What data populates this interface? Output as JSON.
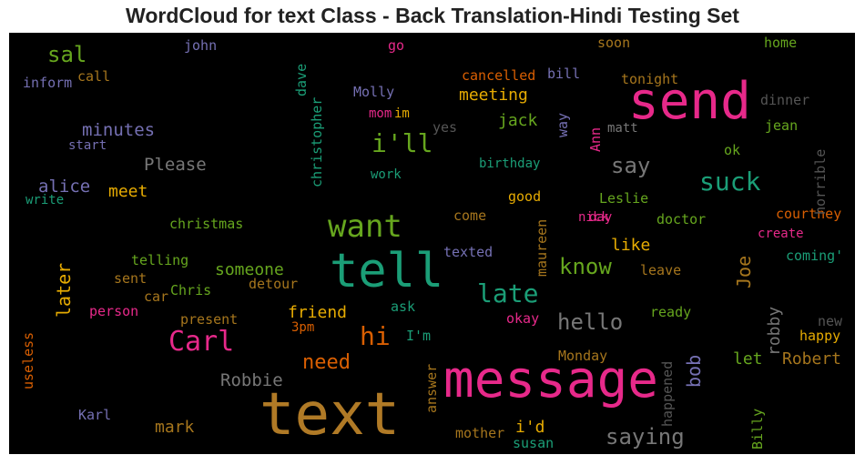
{
  "title": "WordCloud for text Class - Back Translation-Hindi Testing Set",
  "words": [
    {
      "id": "text",
      "text": "text",
      "color": "#b07a26"
    },
    {
      "id": "message",
      "text": "message",
      "color": "#e7298a"
    },
    {
      "id": "send",
      "text": "send",
      "color": "#e7298a"
    },
    {
      "id": "tell",
      "text": "tell",
      "color": "#1b9e77"
    },
    {
      "id": "want",
      "text": "want",
      "color": "#66a61e"
    },
    {
      "id": "carl",
      "text": "Carl",
      "color": "#e7298a"
    },
    {
      "id": "suck",
      "text": "suck",
      "color": "#1b9e77"
    },
    {
      "id": "ill",
      "text": "i'll",
      "color": "#66a61e"
    },
    {
      "id": "late",
      "text": "late",
      "color": "#1b9e77"
    },
    {
      "id": "hello",
      "text": "hello",
      "color": "#777777"
    },
    {
      "id": "saying",
      "text": "saying",
      "color": "#777777"
    },
    {
      "id": "hi",
      "text": "hi",
      "color": "#d95f02"
    },
    {
      "id": "know",
      "text": "know",
      "color": "#66a61e"
    },
    {
      "id": "say",
      "text": "say",
      "color": "#777777"
    },
    {
      "id": "need",
      "text": "need",
      "color": "#d95f02"
    },
    {
      "id": "sal",
      "text": "sal",
      "color": "#66a61e"
    },
    {
      "id": "minutes",
      "text": "minutes",
      "color": "#7570b3"
    },
    {
      "id": "please",
      "text": "Please",
      "color": "#777777"
    },
    {
      "id": "alice",
      "text": "alice",
      "color": "#7570b3"
    },
    {
      "id": "meet",
      "text": "meet",
      "color": "#e6ab02"
    },
    {
      "id": "meeting",
      "text": "meeting",
      "color": "#e6ab02"
    },
    {
      "id": "jack",
      "text": "jack",
      "color": "#66a61e"
    },
    {
      "id": "friend",
      "text": "friend",
      "color": "#e6ab02"
    },
    {
      "id": "someone",
      "text": "someone",
      "color": "#66a61e"
    },
    {
      "id": "robbie",
      "text": "Robbie",
      "color": "#777777"
    },
    {
      "id": "mark",
      "text": "mark",
      "color": "#a6761d"
    },
    {
      "id": "id",
      "text": "i'd",
      "color": "#e6ab02"
    },
    {
      "id": "like",
      "text": "like",
      "color": "#e6ab02"
    },
    {
      "id": "robert",
      "text": "Robert",
      "color": "#a6761d"
    },
    {
      "id": "let",
      "text": "let",
      "color": "#66a61e"
    },
    {
      "id": "bob",
      "text": "bob",
      "color": "#7570b3"
    },
    {
      "id": "joe",
      "text": "Joe",
      "color": "#a6761d"
    },
    {
      "id": "robby",
      "text": "robby",
      "color": "#777777"
    },
    {
      "id": "later",
      "text": "later",
      "color": "#e6ab02"
    },
    {
      "id": "john",
      "text": "john",
      "color": "#7570b3"
    },
    {
      "id": "go",
      "text": "go",
      "color": "#e7298a"
    },
    {
      "id": "soon",
      "text": "soon",
      "color": "#a6761d"
    },
    {
      "id": "home",
      "text": "home",
      "color": "#66a61e"
    },
    {
      "id": "inform",
      "text": "inform",
      "color": "#7570b3"
    },
    {
      "id": "call",
      "text": "call",
      "color": "#a6761d"
    },
    {
      "id": "cancelled",
      "text": "cancelled",
      "color": "#d95f02"
    },
    {
      "id": "bill",
      "text": "bill",
      "color": "#7570b3"
    },
    {
      "id": "tonight",
      "text": "tonight",
      "color": "#a6761d"
    },
    {
      "id": "molly",
      "text": "Molly",
      "color": "#7570b3"
    },
    {
      "id": "dinner",
      "text": "dinner",
      "color": "#555555"
    },
    {
      "id": "mom",
      "text": "mom",
      "color": "#e7298a"
    },
    {
      "id": "im",
      "text": "im",
      "color": "#e6ab02"
    },
    {
      "id": "yes",
      "text": "yes",
      "color": "#555555"
    },
    {
      "id": "matt",
      "text": "matt",
      "color": "#777777"
    },
    {
      "id": "jean",
      "text": "jean",
      "color": "#66a61e"
    },
    {
      "id": "start",
      "text": "start",
      "color": "#7570b3"
    },
    {
      "id": "ok",
      "text": "ok",
      "color": "#66a61e"
    },
    {
      "id": "work",
      "text": "work",
      "color": "#1b9e77"
    },
    {
      "id": "birthday",
      "text": "birthday",
      "color": "#1b9e77"
    },
    {
      "id": "write",
      "text": "write",
      "color": "#1b9e77"
    },
    {
      "id": "good",
      "text": "good",
      "color": "#e6ab02"
    },
    {
      "id": "leslie",
      "text": "Leslie",
      "color": "#66a61e"
    },
    {
      "id": "christmas",
      "text": "christmas",
      "color": "#66a61e"
    },
    {
      "id": "come",
      "text": "come",
      "color": "#a6761d"
    },
    {
      "id": "nick",
      "text": "nick",
      "color": "#e7298a"
    },
    {
      "id": "day",
      "text": "day",
      "color": "#e7298a"
    },
    {
      "id": "doctor",
      "text": "doctor",
      "color": "#66a61e"
    },
    {
      "id": "courtney",
      "text": "courtney",
      "color": "#d95f02"
    },
    {
      "id": "create",
      "text": "create",
      "color": "#e7298a"
    },
    {
      "id": "texted",
      "text": "texted",
      "color": "#7570b3"
    },
    {
      "id": "telling",
      "text": "telling",
      "color": "#66a61e"
    },
    {
      "id": "coming",
      "text": "coming'",
      "color": "#1b9e77"
    },
    {
      "id": "sent",
      "text": "sent",
      "color": "#a6761d"
    },
    {
      "id": "detour",
      "text": "detour",
      "color": "#a6761d"
    },
    {
      "id": "chris",
      "text": "Chris",
      "color": "#66a61e"
    },
    {
      "id": "car",
      "text": "car",
      "color": "#a6761d"
    },
    {
      "id": "leave",
      "text": "leave",
      "color": "#a6761d"
    },
    {
      "id": "ask",
      "text": "ask",
      "color": "#1b9e77"
    },
    {
      "id": "person",
      "text": "person",
      "color": "#e7298a"
    },
    {
      "id": "present",
      "text": "present",
      "color": "#a6761d"
    },
    {
      "id": "3pm",
      "text": "3pm",
      "color": "#d95f02"
    },
    {
      "id": "okay",
      "text": "okay",
      "color": "#e7298a"
    },
    {
      "id": "ready",
      "text": "ready",
      "color": "#66a61e"
    },
    {
      "id": "new",
      "text": "new",
      "color": "#555555"
    },
    {
      "id": "im2",
      "text": "I'm",
      "color": "#1b9e77"
    },
    {
      "id": "happy",
      "text": "happy",
      "color": "#e6ab02"
    },
    {
      "id": "monday",
      "text": "Monday",
      "color": "#a6761d"
    },
    {
      "id": "karl",
      "text": "Karl",
      "color": "#7570b3"
    },
    {
      "id": "mother",
      "text": "mother",
      "color": "#a6761d"
    },
    {
      "id": "susan",
      "text": "susan",
      "color": "#1b9e77"
    },
    {
      "id": "dave",
      "text": "dave",
      "color": "#1b9e77"
    },
    {
      "id": "christopher",
      "text": "christopher",
      "color": "#1b9e77"
    },
    {
      "id": "way",
      "text": "way",
      "color": "#7570b3"
    },
    {
      "id": "ann",
      "text": "Ann",
      "color": "#e7298a"
    },
    {
      "id": "horrible",
      "text": "horrible",
      "color": "#555555"
    },
    {
      "id": "maureen",
      "text": "maureen",
      "color": "#a6761d"
    },
    {
      "id": "answer",
      "text": "answer",
      "color": "#a6761d"
    },
    {
      "id": "happened",
      "text": "happened",
      "color": "#555555"
    },
    {
      "id": "billy",
      "text": "Billy",
      "color": "#66a61e"
    },
    {
      "id": "useless",
      "text": "useless",
      "color": "#d95f02"
    }
  ]
}
